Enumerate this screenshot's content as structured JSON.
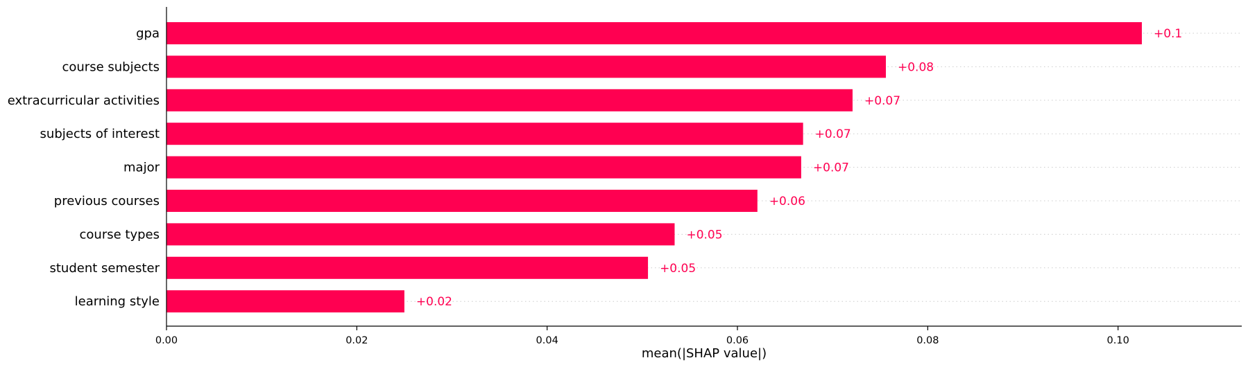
{
  "chart_data": {
    "type": "bar",
    "orientation": "horizontal",
    "categories": [
      "gpa",
      "course subjects",
      "extracurricular activities",
      "subjects of interest",
      "major",
      "previous courses",
      "course types",
      "student semester",
      "learning style"
    ],
    "values": [
      0.1025,
      0.0756,
      0.0721,
      0.0669,
      0.0667,
      0.0621,
      0.0534,
      0.0506,
      0.025
    ],
    "value_labels": [
      "+0.1",
      "+0.08",
      "+0.07",
      "+0.07",
      "+0.07",
      "+0.06",
      "+0.05",
      "+0.05",
      "+0.02"
    ],
    "xlabel": "mean(|SHAP value|)",
    "ylabel": "",
    "xlim": [
      0,
      0.113
    ],
    "x_ticks": [
      0.0,
      0.02,
      0.04,
      0.06,
      0.08,
      0.1
    ],
    "x_tick_labels": [
      "0.00",
      "0.02",
      "0.04",
      "0.06",
      "0.08",
      "0.10"
    ],
    "grid": false,
    "guide_lines": true,
    "colors": {
      "bar": "#ff0051",
      "value_label": "#ff0051",
      "guide": "#cccccc",
      "axis": "#000000"
    }
  }
}
